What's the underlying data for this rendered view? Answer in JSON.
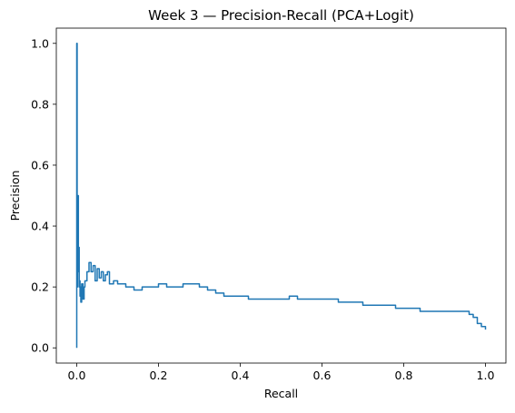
{
  "chart_data": {
    "type": "line",
    "title": "Week 3 — Precision-Recall (PCA+Logit)",
    "xlabel": "Recall",
    "ylabel": "Precision",
    "xlim": [
      -0.05,
      1.05
    ],
    "ylim": [
      -0.05,
      1.05
    ],
    "xticks": [
      0.0,
      0.2,
      0.4,
      0.6,
      0.8,
      1.0
    ],
    "yticks": [
      0.0,
      0.2,
      0.4,
      0.6,
      0.8,
      1.0
    ],
    "xtick_labels": [
      "0.0",
      "0.2",
      "0.4",
      "0.6",
      "0.8",
      "1.0"
    ],
    "ytick_labels": [
      "0.0",
      "0.2",
      "0.4",
      "0.6",
      "0.8",
      "1.0"
    ],
    "grid": false,
    "legend": "none",
    "series": [
      {
        "color": "#1f77b4",
        "x": [
          0.0,
          0.0,
          0.001,
          0.002,
          0.004,
          0.004,
          0.006,
          0.006,
          0.008,
          0.008,
          0.01,
          0.012,
          0.015,
          0.018,
          0.02,
          0.025,
          0.03,
          0.035,
          0.04,
          0.045,
          0.05,
          0.055,
          0.06,
          0.065,
          0.07,
          0.075,
          0.08,
          0.09,
          0.1,
          0.12,
          0.14,
          0.16,
          0.18,
          0.2,
          0.22,
          0.24,
          0.26,
          0.28,
          0.3,
          0.32,
          0.34,
          0.36,
          0.38,
          0.4,
          0.42,
          0.44,
          0.46,
          0.48,
          0.5,
          0.52,
          0.54,
          0.56,
          0.58,
          0.6,
          0.62,
          0.64,
          0.66,
          0.68,
          0.7,
          0.72,
          0.74,
          0.76,
          0.78,
          0.8,
          0.82,
          0.84,
          0.86,
          0.88,
          0.9,
          0.92,
          0.94,
          0.96,
          0.97,
          0.98,
          0.99,
          1.0
        ],
        "y": [
          0.0,
          1.0,
          0.2,
          0.5,
          0.25,
          0.33,
          0.2,
          0.22,
          0.17,
          0.2,
          0.15,
          0.21,
          0.16,
          0.2,
          0.22,
          0.25,
          0.28,
          0.25,
          0.27,
          0.22,
          0.26,
          0.23,
          0.25,
          0.22,
          0.24,
          0.25,
          0.21,
          0.22,
          0.21,
          0.2,
          0.19,
          0.2,
          0.2,
          0.21,
          0.2,
          0.2,
          0.21,
          0.21,
          0.2,
          0.19,
          0.18,
          0.17,
          0.17,
          0.17,
          0.16,
          0.16,
          0.16,
          0.16,
          0.16,
          0.17,
          0.16,
          0.16,
          0.16,
          0.16,
          0.16,
          0.15,
          0.15,
          0.15,
          0.14,
          0.14,
          0.14,
          0.14,
          0.13,
          0.13,
          0.13,
          0.12,
          0.12,
          0.12,
          0.12,
          0.12,
          0.12,
          0.11,
          0.1,
          0.08,
          0.07,
          0.06
        ]
      }
    ]
  }
}
